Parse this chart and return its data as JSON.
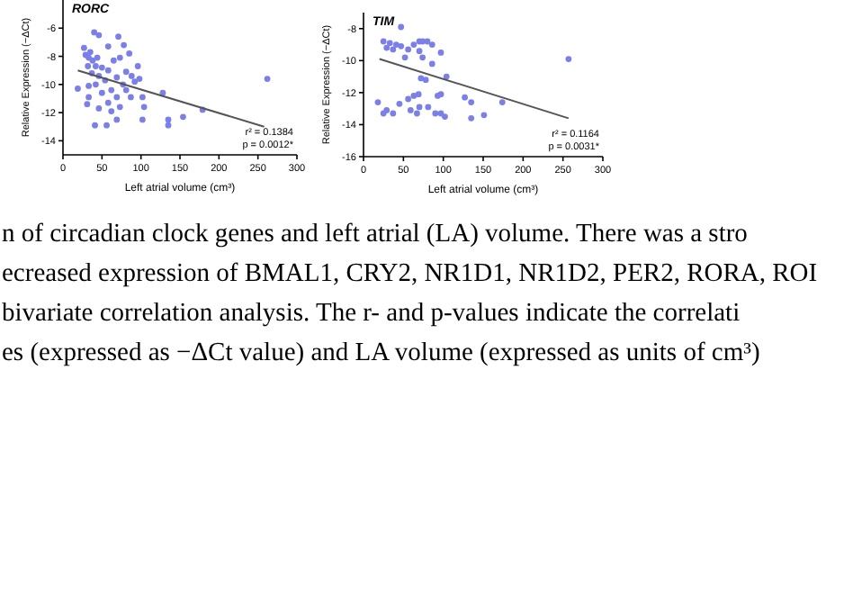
{
  "chart_data": [
    {
      "type": "scatter",
      "title": "RORC",
      "xlabel": "Left atrial volume (cm³)",
      "ylabel": "Relative Expression (−ΔCt)",
      "xlim": [
        0,
        300
      ],
      "xticks": [
        0,
        50,
        100,
        150,
        200,
        250,
        300
      ],
      "ylim": [
        -15,
        -4
      ],
      "yticks": [
        -14,
        -12,
        -10,
        -8,
        -6
      ],
      "annotations": [
        "r² = 0.1384",
        "p = 0.0012*"
      ],
      "series": [
        {
          "color": "#7b7fe8",
          "marker": "circle",
          "x": [
            40,
            46,
            71,
            78,
            58,
            27,
            35,
            29,
            33,
            38,
            44,
            65,
            73,
            85,
            96,
            32,
            42,
            50,
            58,
            37,
            46,
            81,
            88,
            69,
            54,
            19,
            33,
            42,
            77,
            92,
            98,
            62,
            81,
            50,
            33,
            69,
            87,
            102,
            31,
            58,
            46,
            62,
            73,
            104,
            128,
            102,
            135,
            135,
            154,
            179,
            41,
            56,
            69,
            262
          ],
          "values": [
            -6.3,
            -6.5,
            -6.6,
            -7.2,
            -7.3,
            -7.4,
            -7.7,
            -7.9,
            -8.1,
            -8.3,
            -8.1,
            -8.3,
            -8.1,
            -7.8,
            -8.7,
            -8.7,
            -8.7,
            -8.8,
            -9.0,
            -9.2,
            -9.4,
            -9.1,
            -9.4,
            -9.5,
            -9.7,
            -10.3,
            -10.1,
            -10.0,
            -10.0,
            -9.8,
            -9.6,
            -10.4,
            -10.4,
            -10.6,
            -10.9,
            -10.9,
            -10.9,
            -10.9,
            -11.4,
            -11.3,
            -11.7,
            -11.9,
            -11.6,
            -11.6,
            -10.6,
            -12.5,
            -12.5,
            -12.9,
            -12.3,
            -11.8,
            -12.9,
            -12.9,
            -12.5,
            -9.6
          ]
        },
        {
          "type": "line",
          "color": "#555555",
          "x": [
            19,
            258
          ],
          "values": [
            -9.0,
            -13.0
          ]
        }
      ]
    },
    {
      "type": "scatter",
      "title": "TIM",
      "xlabel": "Left atrial volume (cm³)",
      "ylabel": "Relative Expression (−ΔCt)",
      "xlim": [
        0,
        300
      ],
      "xticks": [
        0,
        50,
        100,
        150,
        200,
        250,
        300
      ],
      "ylim": [
        -16,
        -7
      ],
      "yticks": [
        -16,
        -14,
        -12,
        -10,
        -8
      ],
      "annotations": [
        "r² = 0.1164",
        "p = 0.0031*"
      ],
      "series": [
        {
          "color": "#7b7fe8",
          "marker": "circle",
          "x": [
            47,
            25,
            33,
            41,
            29,
            37,
            47,
            56,
            52,
            63,
            70,
            18,
            29,
            37,
            45,
            56,
            63,
            59,
            70,
            67,
            25,
            74,
            80,
            86,
            70,
            74,
            97,
            86,
            72,
            78,
            104,
            69,
            93,
            97,
            127,
            135,
            81,
            90,
            97,
            102,
            135,
            151,
            174,
            257
          ],
          "values": [
            -7.9,
            -8.8,
            -8.9,
            -9.0,
            -9.2,
            -9.3,
            -9.1,
            -9.3,
            -9.8,
            -9.0,
            -8.8,
            -12.6,
            -13.1,
            -13.3,
            -12.7,
            -12.4,
            -12.2,
            -13.1,
            -12.9,
            -13.3,
            -13.3,
            -8.8,
            -8.8,
            -9.0,
            -9.4,
            -9.8,
            -9.5,
            -10.2,
            -11.1,
            -11.2,
            -11.0,
            -12.1,
            -12.2,
            -12.1,
            -12.3,
            -12.6,
            -12.9,
            -13.3,
            -13.3,
            -13.5,
            -13.6,
            -13.4,
            -12.6,
            -9.9
          ]
        },
        {
          "type": "line",
          "color": "#555555",
          "x": [
            20,
            257
          ],
          "values": [
            -9.9,
            -13.6
          ]
        }
      ]
    },
    {
      "type": "other",
      "annotations": [
        "n of circadian clock genes and left atrial (LA) volume. There was a stro",
        "ecreased expression of BMAL1, CRY2, NR1D1, NR1D2, PER2, RORA, ROI",
        "bivariate correlation analysis. The r- and p-values indicate the correlati",
        "es (expressed as −ΔCt value) and LA volume (expressed as units of cm³)"
      ]
    }
  ]
}
